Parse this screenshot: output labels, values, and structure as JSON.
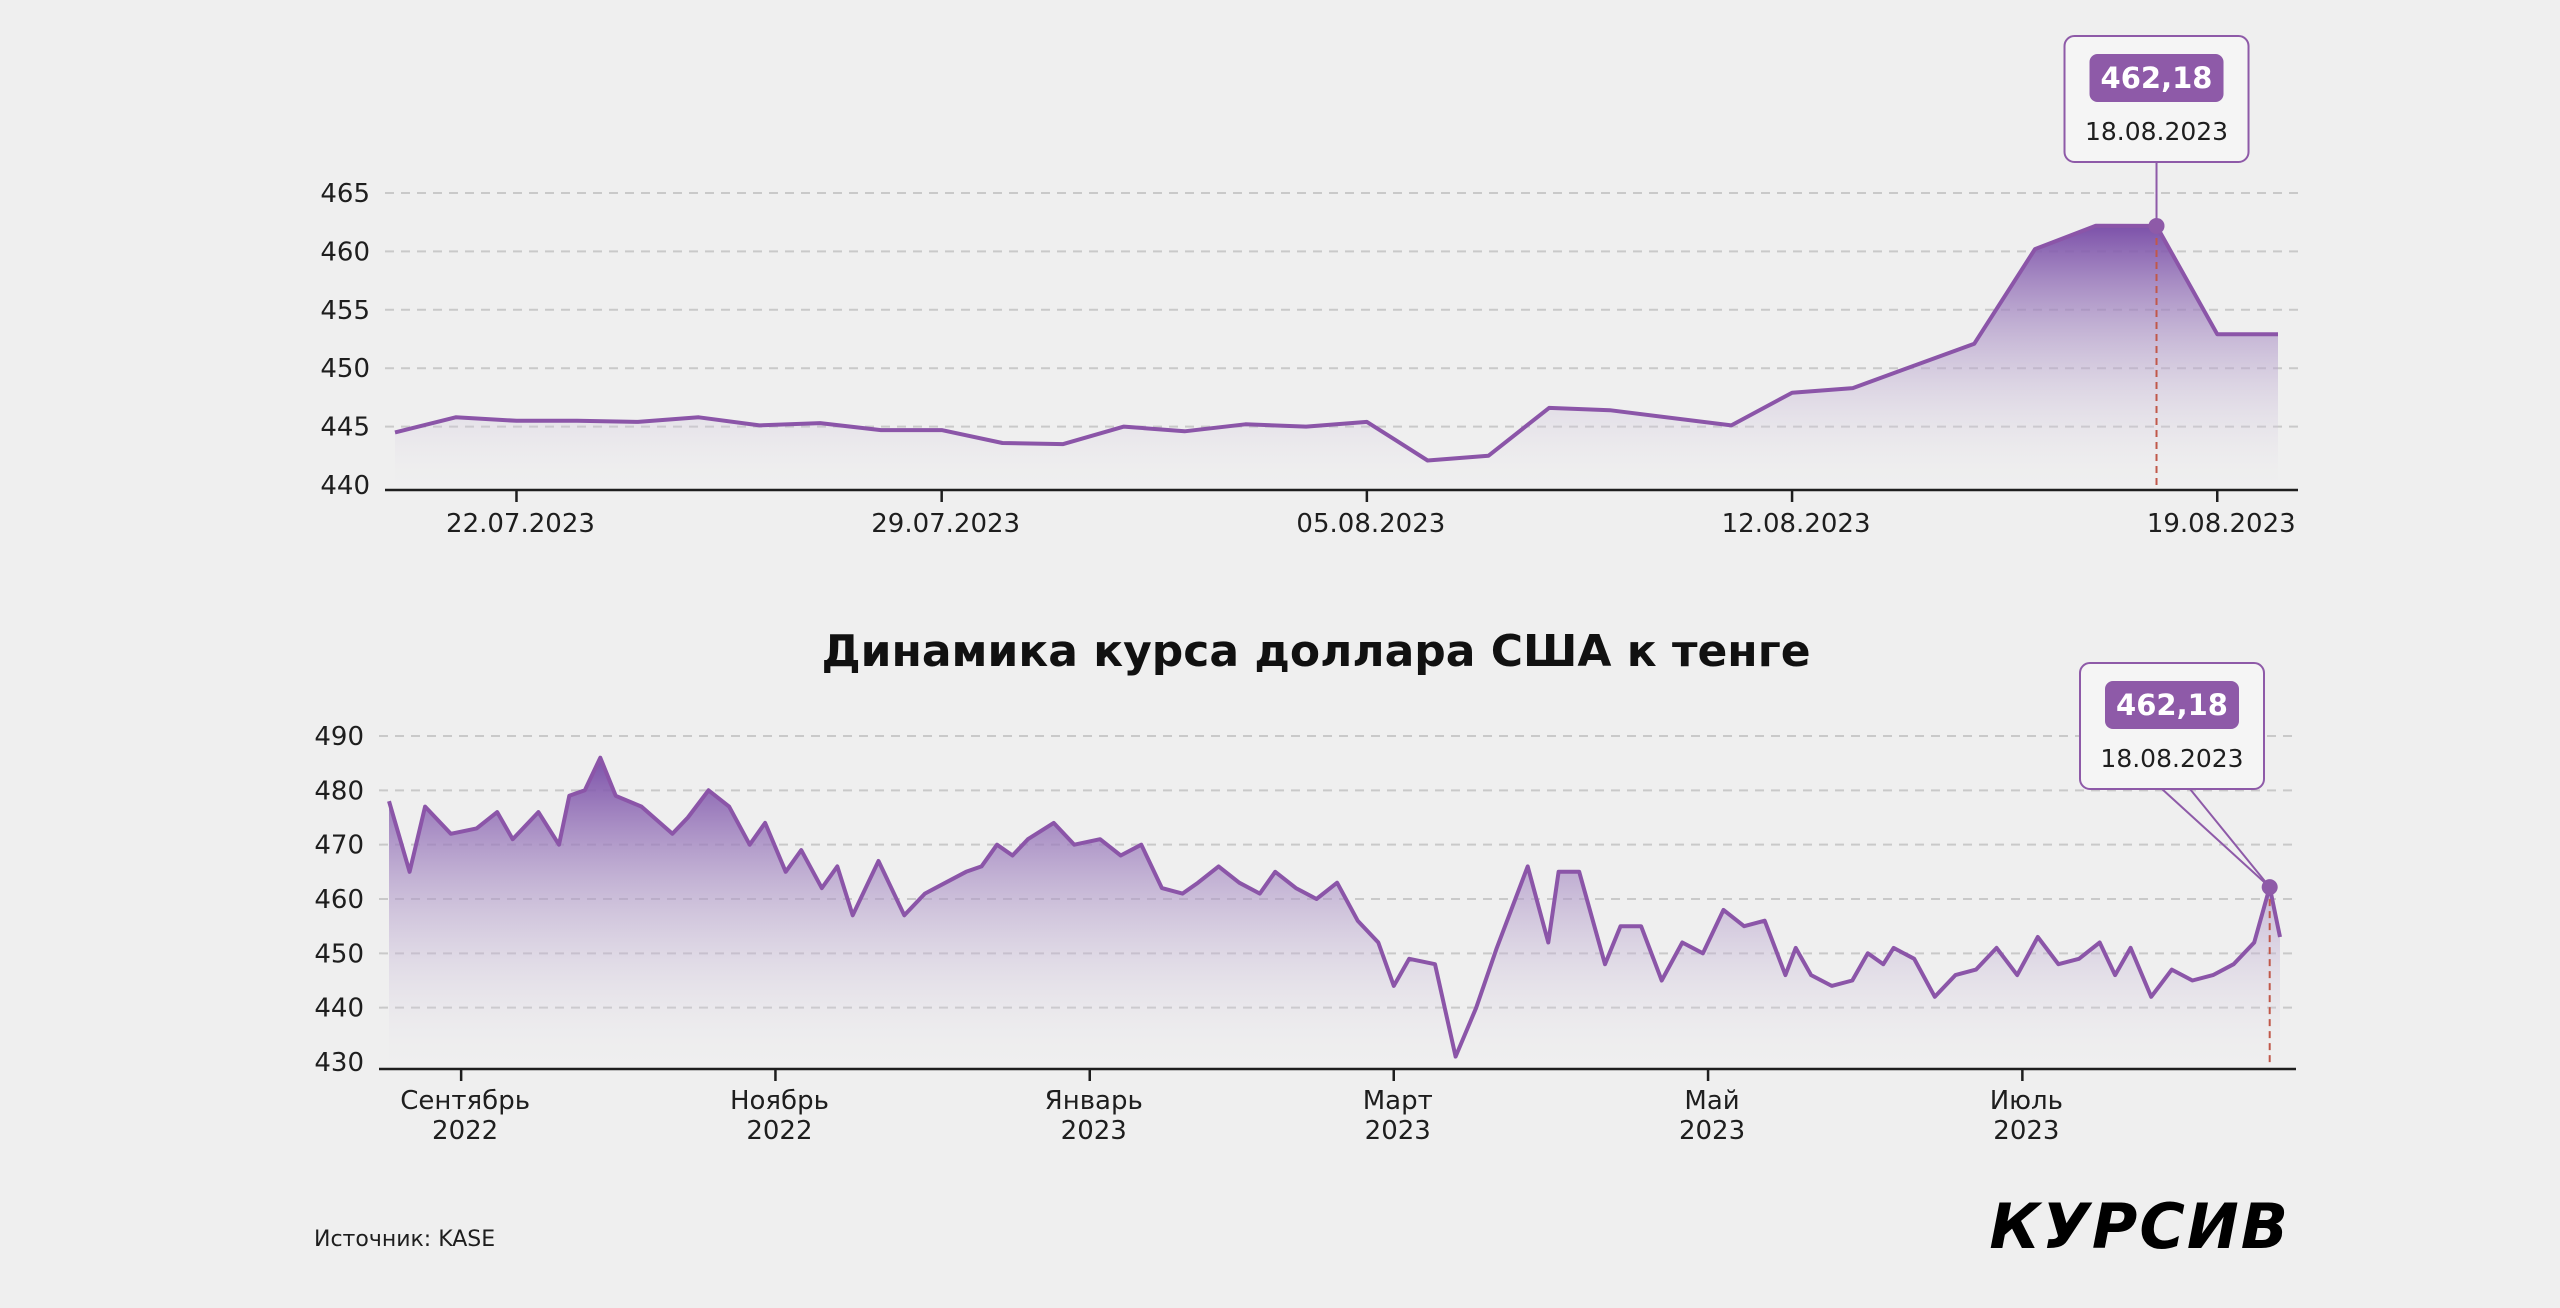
{
  "title": "Динамика курса доллара США к тенге",
  "source": "Источник: KASE",
  "logo": "КУРСИВ",
  "colors": {
    "line": "#8b55a8",
    "fill_top": "#7d50a8",
    "highlight": "#8e5aa8",
    "grid": "#c9c9c9",
    "marker": "#c0584a",
    "background": "#efefef"
  },
  "chart_data": [
    {
      "type": "area",
      "ylim": [
        440,
        465
      ],
      "yticks": [
        440,
        445,
        450,
        455,
        460,
        465
      ],
      "xticks": [
        "22.07.2023",
        "29.07.2023",
        "05.08.2023",
        "12.08.2023",
        "19.08.2023"
      ],
      "x_range": [
        "2023-07-20",
        "2023-08-20"
      ],
      "points": [
        [
          "2023-07-20",
          444.5
        ],
        [
          "2023-07-21",
          445.8
        ],
        [
          "2023-07-22",
          445.5
        ],
        [
          "2023-07-23",
          445.5
        ],
        [
          "2023-07-24",
          445.4
        ],
        [
          "2023-07-25",
          445.8
        ],
        [
          "2023-07-26",
          445.1
        ],
        [
          "2023-07-27",
          445.3
        ],
        [
          "2023-07-28",
          444.7
        ],
        [
          "2023-07-29",
          444.7
        ],
        [
          "2023-07-30",
          443.6
        ],
        [
          "2023-07-31",
          443.5
        ],
        [
          "2023-08-01",
          445.0
        ],
        [
          "2023-08-02",
          444.6
        ],
        [
          "2023-08-03",
          445.2
        ],
        [
          "2023-08-04",
          445.0
        ],
        [
          "2023-08-05",
          445.4
        ],
        [
          "2023-08-06",
          442.1
        ],
        [
          "2023-08-07",
          442.5
        ],
        [
          "2023-08-08",
          446.6
        ],
        [
          "2023-08-09",
          446.4
        ],
        [
          "2023-08-11",
          445.1
        ],
        [
          "2023-08-12",
          447.9
        ],
        [
          "2023-08-13",
          448.3
        ],
        [
          "2023-08-15",
          452.1
        ],
        [
          "2023-08-16",
          460.2
        ],
        [
          "2023-08-17",
          462.2
        ],
        [
          "2023-08-18",
          462.18
        ],
        [
          "2023-08-19",
          452.9
        ],
        [
          "2023-08-20",
          452.9
        ]
      ],
      "highlight": {
        "value": "462,18",
        "date": "18.08.2023",
        "x": "2023-08-18",
        "y": 462.18
      }
    },
    {
      "type": "area",
      "ylim": [
        430,
        490
      ],
      "yticks": [
        430,
        440,
        450,
        460,
        470,
        480,
        490
      ],
      "xticks": [
        {
          "month": "Сентябрь",
          "year": "2022",
          "x": "2022-09-01"
        },
        {
          "month": "Ноябрь",
          "year": "2022",
          "x": "2022-11-01"
        },
        {
          "month": "Январь",
          "year": "2023",
          "x": "2023-01-01"
        },
        {
          "month": "Март",
          "year": "2023",
          "x": "2023-03-01"
        },
        {
          "month": "Май",
          "year": "2023",
          "x": "2023-05-01"
        },
        {
          "month": "Июль",
          "year": "2023",
          "x": "2023-07-01"
        }
      ],
      "x_range": [
        "2022-08-18",
        "2023-08-20"
      ],
      "points": [
        [
          "2022-08-18",
          478
        ],
        [
          "2022-08-22",
          465
        ],
        [
          "2022-08-25",
          477
        ],
        [
          "2022-08-30",
          472
        ],
        [
          "2022-09-04",
          473
        ],
        [
          "2022-09-08",
          476
        ],
        [
          "2022-09-11",
          471
        ],
        [
          "2022-09-16",
          476
        ],
        [
          "2022-09-20",
          470
        ],
        [
          "2022-09-22",
          479
        ],
        [
          "2022-09-25",
          480
        ],
        [
          "2022-09-28",
          486
        ],
        [
          "2022-10-01",
          479
        ],
        [
          "2022-10-06",
          477
        ],
        [
          "2022-10-12",
          472
        ],
        [
          "2022-10-15",
          475
        ],
        [
          "2022-10-19",
          480
        ],
        [
          "2022-10-23",
          477
        ],
        [
          "2022-10-27",
          470
        ],
        [
          "2022-10-30",
          474
        ],
        [
          "2022-11-03",
          465
        ],
        [
          "2022-11-06",
          469
        ],
        [
          "2022-11-10",
          462
        ],
        [
          "2022-11-13",
          466
        ],
        [
          "2022-11-16",
          457
        ],
        [
          "2022-11-21",
          467
        ],
        [
          "2022-11-26",
          457
        ],
        [
          "2022-11-30",
          461
        ],
        [
          "2022-12-04",
          463
        ],
        [
          "2022-12-08",
          465
        ],
        [
          "2022-12-11",
          466
        ],
        [
          "2022-12-14",
          470
        ],
        [
          "2022-12-17",
          468
        ],
        [
          "2022-12-20",
          471
        ],
        [
          "2022-12-25",
          474
        ],
        [
          "2022-12-29",
          470
        ],
        [
          "2023-01-03",
          471
        ],
        [
          "2023-01-07",
          468
        ],
        [
          "2023-01-11",
          470
        ],
        [
          "2023-01-15",
          462
        ],
        [
          "2023-01-19",
          461
        ],
        [
          "2023-01-22",
          463
        ],
        [
          "2023-01-26",
          466
        ],
        [
          "2023-01-30",
          463
        ],
        [
          "2023-02-03",
          461
        ],
        [
          "2023-02-06",
          465
        ],
        [
          "2023-02-10",
          462
        ],
        [
          "2023-02-14",
          460
        ],
        [
          "2023-02-18",
          463
        ],
        [
          "2023-02-22",
          456
        ],
        [
          "2023-02-26",
          452
        ],
        [
          "2023-03-01",
          444
        ],
        [
          "2023-03-04",
          449
        ],
        [
          "2023-03-09",
          448
        ],
        [
          "2023-03-13",
          431
        ],
        [
          "2023-03-17",
          440
        ],
        [
          "2023-03-21",
          451
        ],
        [
          "2023-03-27",
          466
        ],
        [
          "2023-03-31",
          452
        ],
        [
          "2023-04-02",
          465
        ],
        [
          "2023-04-06",
          465
        ],
        [
          "2023-04-11",
          448
        ],
        [
          "2023-04-14",
          455
        ],
        [
          "2023-04-18",
          455
        ],
        [
          "2023-04-22",
          445
        ],
        [
          "2023-04-26",
          452
        ],
        [
          "2023-04-30",
          450
        ],
        [
          "2023-05-04",
          458
        ],
        [
          "2023-05-08",
          455
        ],
        [
          "2023-05-12",
          456
        ],
        [
          "2023-05-16",
          446
        ],
        [
          "2023-05-18",
          451
        ],
        [
          "2023-05-21",
          446
        ],
        [
          "2023-05-25",
          444
        ],
        [
          "2023-05-29",
          445
        ],
        [
          "2023-06-01",
          450
        ],
        [
          "2023-06-04",
          448
        ],
        [
          "2023-06-06",
          451
        ],
        [
          "2023-06-10",
          449
        ],
        [
          "2023-06-14",
          442
        ],
        [
          "2023-06-18",
          446
        ],
        [
          "2023-06-22",
          447
        ],
        [
          "2023-06-26",
          451
        ],
        [
          "2023-06-30",
          446
        ],
        [
          "2023-07-04",
          453
        ],
        [
          "2023-07-08",
          448
        ],
        [
          "2023-07-12",
          449
        ],
        [
          "2023-07-16",
          452
        ],
        [
          "2023-07-19",
          446
        ],
        [
          "2023-07-22",
          451
        ],
        [
          "2023-07-26",
          442
        ],
        [
          "2023-07-30",
          447
        ],
        [
          "2023-08-03",
          445
        ],
        [
          "2023-08-07",
          446
        ],
        [
          "2023-08-11",
          448
        ],
        [
          "2023-08-15",
          452
        ],
        [
          "2023-08-18",
          462.18
        ],
        [
          "2023-08-20",
          453
        ]
      ],
      "highlight": {
        "value": "462,18",
        "date": "18.08.2023",
        "x": "2023-08-18",
        "y": 462.18
      }
    }
  ]
}
